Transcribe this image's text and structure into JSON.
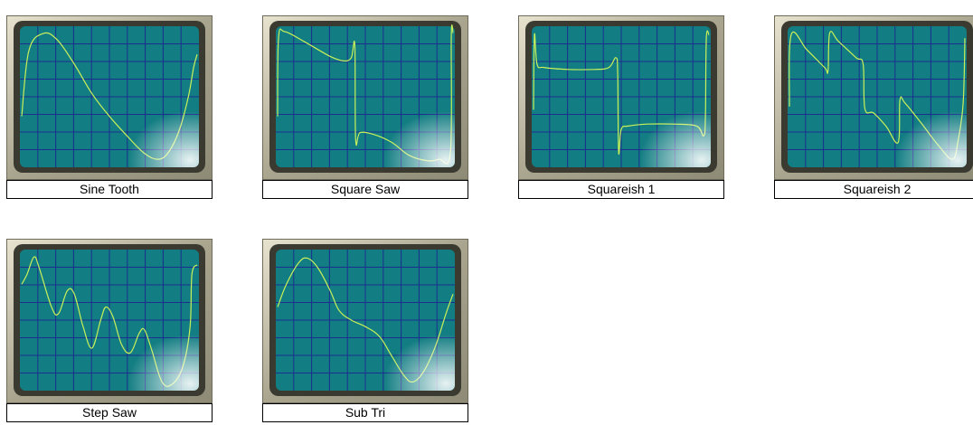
{
  "colors": {
    "bezel": "#a9a58f",
    "bezel_dark": "#3a3a30",
    "bezel_light": "#e7e3cf",
    "screen": "#127d82",
    "grid": "#1c2f8e",
    "trace": "#c8f05a"
  },
  "waveforms": [
    {
      "label": "Sine Tooth",
      "trace": [
        [
          0,
          0.3
        ],
        [
          0.04,
          -0.7
        ],
        [
          0.12,
          -0.97
        ],
        [
          0.2,
          -0.88
        ],
        [
          0.3,
          -0.5
        ],
        [
          0.4,
          -0.05
        ],
        [
          0.5,
          0.3
        ],
        [
          0.6,
          0.6
        ],
        [
          0.7,
          0.87
        ],
        [
          0.78,
          0.96
        ],
        [
          0.84,
          0.84
        ],
        [
          0.9,
          0.5
        ],
        [
          0.95,
          0
        ],
        [
          0.98,
          -0.45
        ],
        [
          1.0,
          -0.65
        ]
      ]
    },
    {
      "label": "Square Saw",
      "trace": [
        [
          0,
          0.3
        ],
        [
          0.005,
          -0.9
        ],
        [
          0.04,
          -1.0
        ],
        [
          0.15,
          -0.85
        ],
        [
          0.3,
          -0.62
        ],
        [
          0.38,
          -0.55
        ],
        [
          0.42,
          -0.6
        ],
        [
          0.44,
          -0.78
        ],
        [
          0.445,
          0.66
        ],
        [
          0.47,
          0.55
        ],
        [
          0.55,
          0.58
        ],
        [
          0.65,
          0.7
        ],
        [
          0.75,
          0.9
        ],
        [
          0.85,
          0.98
        ],
        [
          0.92,
          0.96
        ],
        [
          0.985,
          0.85
        ],
        [
          0.99,
          -0.95
        ],
        [
          1.0,
          -0.98
        ]
      ]
    },
    {
      "label": "Squareish 1",
      "trace": [
        [
          0,
          0.2
        ],
        [
          0.005,
          -0.95
        ],
        [
          0.02,
          -0.5
        ],
        [
          0.06,
          -0.45
        ],
        [
          0.2,
          -0.42
        ],
        [
          0.35,
          -0.42
        ],
        [
          0.43,
          -0.45
        ],
        [
          0.47,
          -0.6
        ],
        [
          0.48,
          -0.35
        ],
        [
          0.485,
          0.85
        ],
        [
          0.5,
          0.5
        ],
        [
          0.54,
          0.45
        ],
        [
          0.65,
          0.42
        ],
        [
          0.8,
          0.42
        ],
        [
          0.93,
          0.45
        ],
        [
          0.97,
          0.6
        ],
        [
          0.98,
          0.3
        ],
        [
          0.985,
          -0.9
        ],
        [
          1.0,
          -0.95
        ]
      ]
    },
    {
      "label": "Squareish 2",
      "trace": [
        [
          0,
          0.15
        ],
        [
          0.01,
          -0.95
        ],
        [
          0.1,
          -0.72
        ],
        [
          0.2,
          -0.45
        ],
        [
          0.22,
          -0.4
        ],
        [
          0.23,
          -0.98
        ],
        [
          0.28,
          -0.85
        ],
        [
          0.38,
          -0.6
        ],
        [
          0.42,
          -0.5
        ],
        [
          0.43,
          0.18
        ],
        [
          0.48,
          0.25
        ],
        [
          0.55,
          0.45
        ],
        [
          0.62,
          0.7
        ],
        [
          0.63,
          0.05
        ],
        [
          0.66,
          0.1
        ],
        [
          0.75,
          0.4
        ],
        [
          0.85,
          0.75
        ],
        [
          0.93,
          0.96
        ],
        [
          0.96,
          0.7
        ],
        [
          0.99,
          0.1
        ],
        [
          1.0,
          -0.9
        ]
      ]
    },
    {
      "label": "Step Saw",
      "trace": [
        [
          0,
          -0.55
        ],
        [
          0.03,
          -0.7
        ],
        [
          0.07,
          -0.97
        ],
        [
          0.1,
          -0.8
        ],
        [
          0.17,
          -0.2
        ],
        [
          0.21,
          -0.1
        ],
        [
          0.26,
          -0.45
        ],
        [
          0.3,
          -0.4
        ],
        [
          0.35,
          0.1
        ],
        [
          0.4,
          0.43
        ],
        [
          0.45,
          0.0
        ],
        [
          0.48,
          -0.2
        ],
        [
          0.52,
          -0.05
        ],
        [
          0.57,
          0.38
        ],
        [
          0.62,
          0.5
        ],
        [
          0.67,
          0.2
        ],
        [
          0.7,
          0.15
        ],
        [
          0.74,
          0.45
        ],
        [
          0.8,
          0.95
        ],
        [
          0.86,
          0.98
        ],
        [
          0.92,
          0.7
        ],
        [
          0.96,
          0.1
        ],
        [
          0.97,
          -0.7
        ],
        [
          1.0,
          -0.85
        ]
      ]
    },
    {
      "label": "Sub Tri",
      "trace": [
        [
          0,
          -0.2
        ],
        [
          0.05,
          -0.55
        ],
        [
          0.12,
          -0.88
        ],
        [
          0.17,
          -0.95
        ],
        [
          0.23,
          -0.8
        ],
        [
          0.3,
          -0.45
        ],
        [
          0.35,
          -0.15
        ],
        [
          0.42,
          0.0
        ],
        [
          0.5,
          0.1
        ],
        [
          0.58,
          0.25
        ],
        [
          0.65,
          0.55
        ],
        [
          0.72,
          0.85
        ],
        [
          0.77,
          0.95
        ],
        [
          0.83,
          0.8
        ],
        [
          0.9,
          0.4
        ],
        [
          0.96,
          -0.1
        ],
        [
          1.0,
          -0.4
        ]
      ]
    }
  ]
}
